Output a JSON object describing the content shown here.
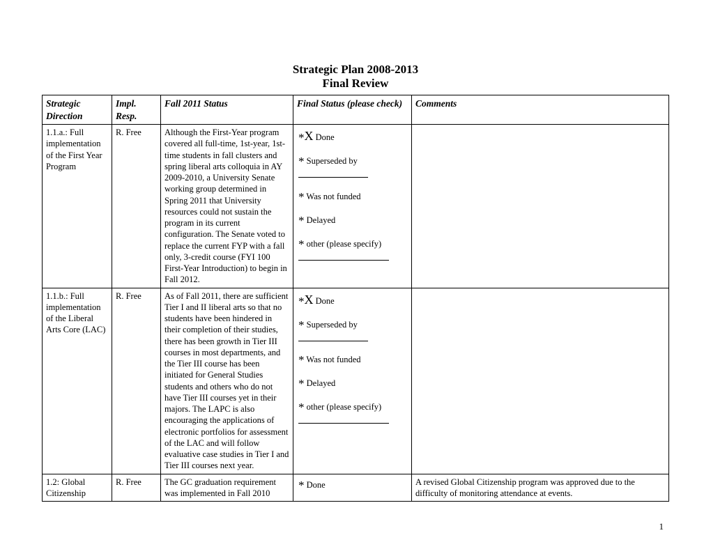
{
  "title": {
    "line1": "Strategic Plan 2008-2013",
    "line2": "Final Review"
  },
  "headers": {
    "col1": "Strategic Direction",
    "col2": "Impl. Resp.",
    "col3": "Fall 2011 Status",
    "col4": "Final Status (please check)",
    "col5": "Comments"
  },
  "status_options": {
    "done": "Done",
    "superseded": "Superseded by",
    "not_funded": "Was not funded",
    "delayed": "Delayed",
    "other": "other (please specify)"
  },
  "rows": [
    {
      "direction": "1.1.a.: Full implementation of the First Year Program",
      "resp": "R. Free",
      "status_text": "Although the First-Year program covered all full-time, 1st-year, 1st-time students in fall clusters and spring liberal arts colloquia in AY 2009-2010, a University Senate working group determined in Spring 2011 that University resources could not sustain the program in its current configuration.  The Senate voted to replace the current FYP with a fall only, 3-credit course (FYI 100 First-Year Introduction) to begin in Fall 2012.",
      "done_checked": true,
      "comments": ""
    },
    {
      "direction": "1.1.b.: Full implementation of the Liberal Arts Core (LAC)",
      "resp": "R. Free",
      "status_text": "As of Fall 2011, there are sufficient Tier I and II liberal arts so that no students have been hindered in their completion of their studies, there has been growth in Tier III courses in most departments, and the Tier III course has been initiated for General Studies students and others who do not have Tier III courses yet in their majors.  The LAPC is also encouraging the applications of electronic portfolios for assessment of the LAC and will follow evaluative case studies in Tier I and Tier III courses next year.",
      "done_checked": true,
      "comments": ""
    },
    {
      "direction": "1.2:  Global Citizenship",
      "resp": "R. Free",
      "status_text": "The GC graduation requirement was implemented in Fall 2010",
      "done_checked": false,
      "comments": "A revised Global Citizenship program was approved due to the difficulty of monitoring attendance at events."
    }
  ],
  "page_number": "1"
}
